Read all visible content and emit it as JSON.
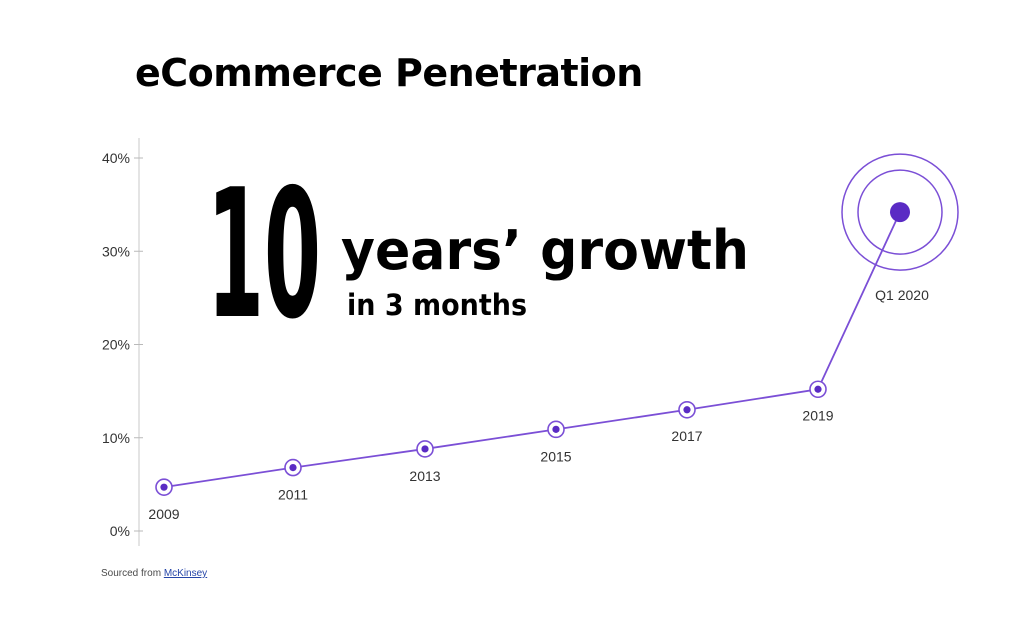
{
  "chart_data": {
    "type": "line",
    "title": "eCommerce Penetration",
    "headline": {
      "number": "10",
      "text": "years’ growth",
      "subtext": "in 3 months"
    },
    "y_ticks": [
      "0%",
      "10%",
      "20%",
      "30%",
      "40%"
    ],
    "ylim": [
      0,
      40
    ],
    "grid": false,
    "series": [
      {
        "points": [
          {
            "label": "2009",
            "value": 4.7
          },
          {
            "label": "2011",
            "value": 6.8
          },
          {
            "label": "2013",
            "value": 8.8
          },
          {
            "label": "2015",
            "value": 10.9
          },
          {
            "label": "2017",
            "value": 13.0
          },
          {
            "label": "2019",
            "value": 15.2
          },
          {
            "label": "Q1 2020",
            "value": 34.2
          }
        ]
      }
    ],
    "line_color": "#7b4fd6",
    "marker_color": "#5a2bc4"
  },
  "source": {
    "prefix": "Sourced from ",
    "link_text": "McKinsey"
  }
}
